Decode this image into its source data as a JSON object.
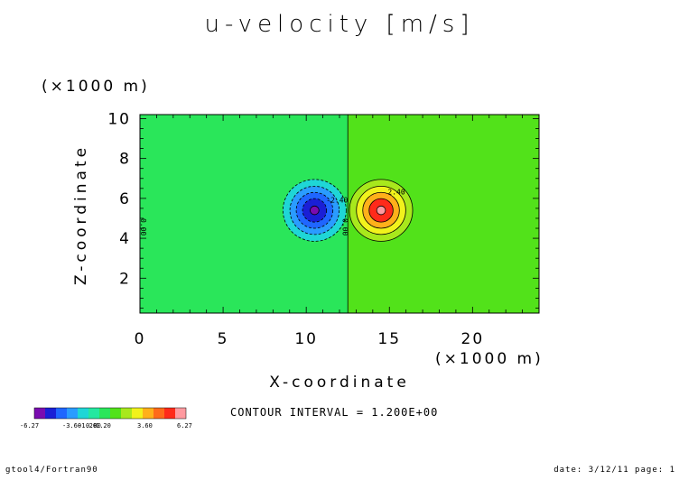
{
  "title": "u-velocity [m/s]",
  "footer": {
    "left": "gtool4/Fortran90",
    "right": "date: 3/12/11 page: 1"
  },
  "chart_data": {
    "type": "heatmap",
    "title": "u-velocity [m/s]",
    "xlabel": "X-coordinate",
    "ylabel": "Z-coordinate",
    "x_unit_label": "(×1000 m)",
    "y_unit_label": "(×1000 m)",
    "xlim": [
      0,
      24
    ],
    "ylim": [
      0.25,
      10.2
    ],
    "x_ticks": [
      0,
      5,
      10,
      15,
      20
    ],
    "y_ticks": [
      2,
      4,
      6,
      8,
      10
    ],
    "contour_interval_text": "CONTOUR INTERVAL = 1.200E+00",
    "contour_interval": 1.2,
    "vortex_pair": [
      {
        "x": 10.5,
        "z": 5.4,
        "peak": -6.27,
        "radius_x": 1.9,
        "radius_z": 1.55
      },
      {
        "x": 14.5,
        "z": 5.4,
        "peak": 6.27,
        "radius_x": 1.9,
        "radius_z": 1.55
      }
    ],
    "discontinuity_x": 12.5,
    "contour_labels": [
      {
        "text": "-2.40",
        "x": 11.2,
        "z": 5.8
      },
      {
        "text": "2.40",
        "x": 14.9,
        "z": 6.2
      },
      {
        "text": "0.00",
        "x": 0.05,
        "z": 5.0
      },
      {
        "text": "0.00",
        "x": 12.2,
        "z": 5.0
      }
    ],
    "colorbar": {
      "colors": [
        "#7a0cb0",
        "#1a1fd6",
        "#1f66ff",
        "#2a9cff",
        "#1fd6d6",
        "#24e8a0",
        "#2ae65a",
        "#52e21a",
        "#a8e81c",
        "#f2f21c",
        "#ffb01a",
        "#ff6a1a",
        "#ff2a1a",
        "#ff9aa0"
      ],
      "labels": [
        "-6.27",
        "-3.60",
        "-1.20",
        "0.00",
        "1.20",
        "3.60",
        "6.27"
      ]
    },
    "grid": false
  }
}
